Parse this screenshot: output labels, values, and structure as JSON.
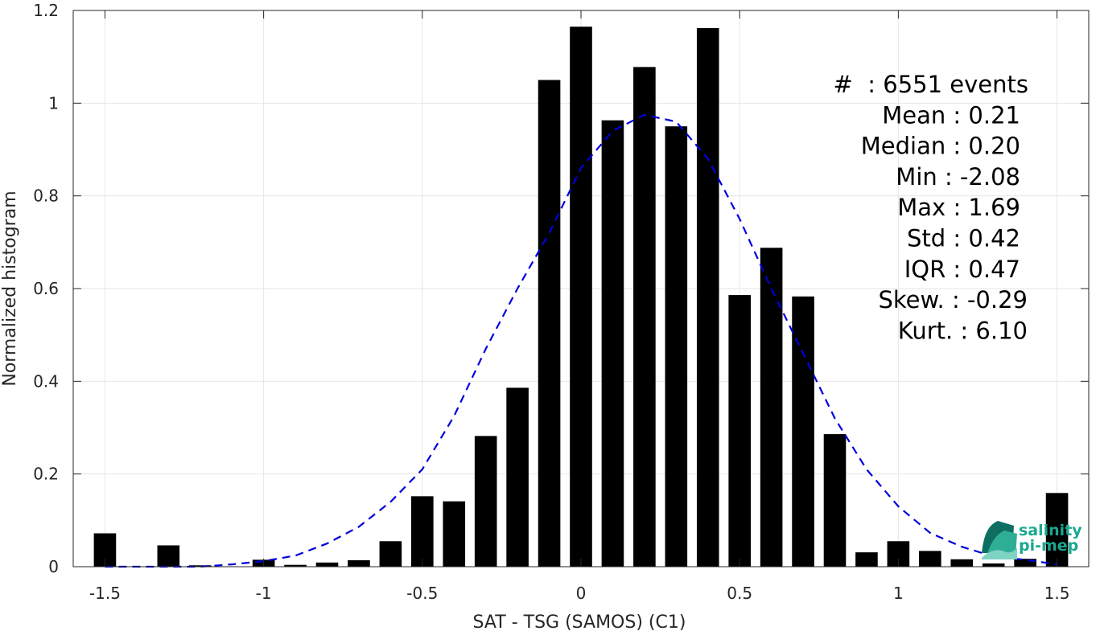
{
  "chart_data": {
    "type": "bar",
    "xlabel": "SAT - TSG (SAMOS) (C1)",
    "ylabel": "Normalized histogram",
    "xlim": [
      -1.6,
      1.6
    ],
    "ylim": [
      0,
      1.2
    ],
    "grid": true,
    "x_ticks": [
      {
        "value": -1.5,
        "label": "-1.5"
      },
      {
        "value": -1.0,
        "label": "-1"
      },
      {
        "value": -0.5,
        "label": "-0.5"
      },
      {
        "value": 0.0,
        "label": "0"
      },
      {
        "value": 0.5,
        "label": "0.5"
      },
      {
        "value": 1.0,
        "label": "1"
      },
      {
        "value": 1.5,
        "label": "1.5"
      }
    ],
    "y_ticks": [
      {
        "value": 0.0,
        "label": "0"
      },
      {
        "value": 0.2,
        "label": "0.2"
      },
      {
        "value": 0.4,
        "label": "0.4"
      },
      {
        "value": 0.6,
        "label": "0.6"
      },
      {
        "value": 0.8,
        "label": "0.8"
      },
      {
        "value": 1.0,
        "label": "1"
      },
      {
        "value": 1.2,
        "label": "1.2"
      }
    ],
    "bin_width": 0.1,
    "bar_width_fraction": 0.7,
    "bins": [
      {
        "x": -1.5,
        "y": 0.072
      },
      {
        "x": -1.4,
        "y": 0.0
      },
      {
        "x": -1.3,
        "y": 0.046
      },
      {
        "x": -1.2,
        "y": 0.003
      },
      {
        "x": -1.1,
        "y": 0.0
      },
      {
        "x": -1.0,
        "y": 0.015
      },
      {
        "x": -0.9,
        "y": 0.004
      },
      {
        "x": -0.8,
        "y": 0.009
      },
      {
        "x": -0.7,
        "y": 0.014
      },
      {
        "x": -0.6,
        "y": 0.055
      },
      {
        "x": -0.5,
        "y": 0.152
      },
      {
        "x": -0.4,
        "y": 0.141
      },
      {
        "x": -0.3,
        "y": 0.282
      },
      {
        "x": -0.2,
        "y": 0.386
      },
      {
        "x": -0.1,
        "y": 1.05
      },
      {
        "x": 0.0,
        "y": 1.165
      },
      {
        "x": 0.1,
        "y": 0.963
      },
      {
        "x": 0.2,
        "y": 1.078
      },
      {
        "x": 0.3,
        "y": 0.95
      },
      {
        "x": 0.4,
        "y": 1.162
      },
      {
        "x": 0.5,
        "y": 0.586
      },
      {
        "x": 0.6,
        "y": 0.688
      },
      {
        "x": 0.7,
        "y": 0.583
      },
      {
        "x": 0.8,
        "y": 0.286
      },
      {
        "x": 0.9,
        "y": 0.031
      },
      {
        "x": 1.0,
        "y": 0.055
      },
      {
        "x": 1.1,
        "y": 0.034
      },
      {
        "x": 1.2,
        "y": 0.016
      },
      {
        "x": 1.3,
        "y": 0.007
      },
      {
        "x": 1.4,
        "y": 0.017
      },
      {
        "x": 1.5,
        "y": 0.159
      }
    ],
    "bar_color": "#000000",
    "fit_curve": {
      "style": "dashed",
      "color": "#0000dd",
      "x": [
        -1.5,
        -1.4,
        -1.3,
        -1.2,
        -1.1,
        -1.0,
        -0.9,
        -0.8,
        -0.7,
        -0.6,
        -0.5,
        -0.4,
        -0.3,
        -0.2,
        -0.1,
        0.0,
        0.1,
        0.2,
        0.3,
        0.4,
        0.5,
        0.6,
        0.7,
        0.8,
        0.9,
        1.0,
        1.1,
        1.2,
        1.3,
        1.4,
        1.5
      ],
      "y": [
        0.0,
        0.0,
        0.0,
        0.0,
        0.005,
        0.012,
        0.024,
        0.05,
        0.086,
        0.14,
        0.21,
        0.325,
        0.47,
        0.6,
        0.72,
        0.86,
        0.94,
        0.975,
        0.96,
        0.88,
        0.75,
        0.6,
        0.46,
        0.32,
        0.21,
        0.13,
        0.073,
        0.043,
        0.022,
        0.015,
        0.005
      ]
    },
    "stats": [
      "#  : 6551 events",
      "Mean : 0.21",
      "Median : 0.20",
      "Min : -2.08",
      "Max : 1.69",
      "Std : 0.42",
      "IQR : 0.47",
      "Skew. : -0.29",
      "Kurt. : 6.10"
    ]
  },
  "logo": {
    "line1": "salinity",
    "line2": "pi-mep",
    "color_text": "#1aa890",
    "color_dark": "#0f6e62",
    "color_mid": "#2fae96",
    "color_light": "#7fd3c2"
  }
}
